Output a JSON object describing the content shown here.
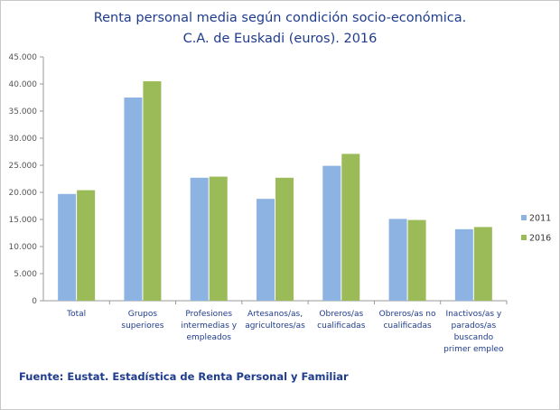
{
  "chart_data": {
    "type": "bar",
    "title": [
      "Renta personal media según condición socio-económica.",
      "C.A. de Euskadi (euros). 2016"
    ],
    "categories": [
      [
        "Total"
      ],
      [
        "Grupos",
        "superiores"
      ],
      [
        "Profesiones",
        "intermedias y",
        "empleados"
      ],
      [
        "Artesanos/as,",
        "agricultores/as"
      ],
      [
        "Obreros/as",
        "cualificadas"
      ],
      [
        "Obreros/as no",
        "cualificadas"
      ],
      [
        "Inactivos/as y",
        "parados/as",
        "buscando",
        "primer empleo"
      ]
    ],
    "series": [
      {
        "name": "2011",
        "color": "#8db3e2",
        "values": [
          19700,
          37500,
          22700,
          18800,
          24900,
          15100,
          13200
        ]
      },
      {
        "name": "2016",
        "color": "#9bbb59",
        "values": [
          20400,
          40500,
          22900,
          22700,
          27100,
          14900,
          13600
        ]
      }
    ],
    "ylim": [
      0,
      45000
    ],
    "yticks": [
      "0",
      "5.000",
      "10.000",
      "15.000",
      "20.000",
      "25.000",
      "30.000",
      "35.000",
      "40.000",
      "45.000"
    ],
    "legend_position": "right",
    "grid": false
  },
  "source": "Fuente: Eustat. Estadística de Renta Personal y Familiar"
}
